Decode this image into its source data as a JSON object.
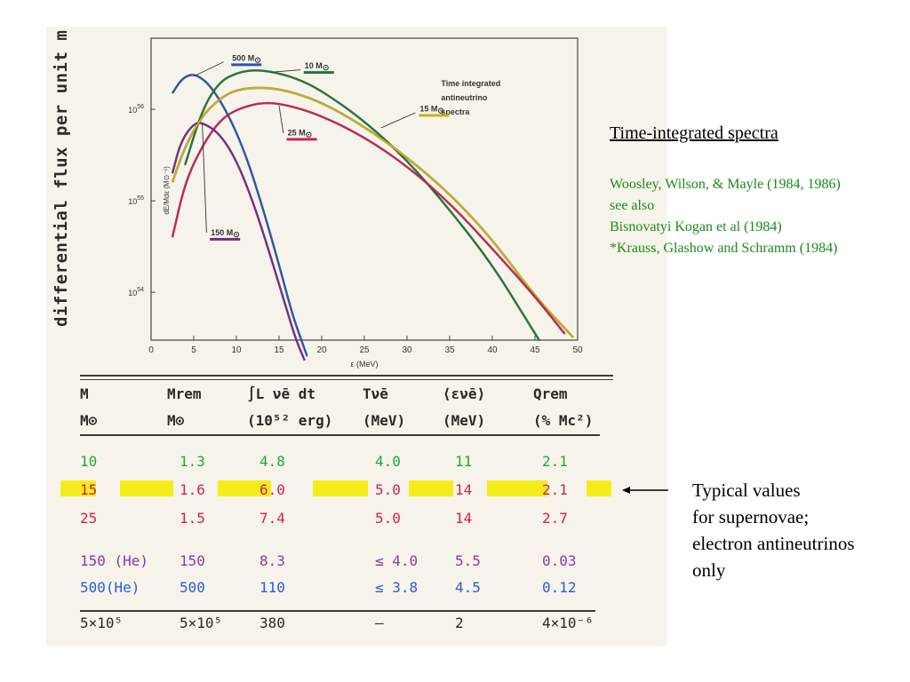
{
  "scan_label": "differential flux per unit m",
  "right": {
    "title": "Time-integrated spectra",
    "references": [
      "Woosley, Wilson, & Mayle (1984, 1986)",
      "see also",
      "Bisnovatyi Kogan et al (1984)",
      "*Krauss, Glashow and Schramm (1984)"
    ],
    "typical_note": [
      "Typical values",
      "for supernovae;",
      "electron antineutrinos",
      "only"
    ]
  },
  "colors": {
    "reference_text": "#1a8a1a",
    "highlight": "#f5ec1c",
    "m10": "#1f7a3a",
    "m15": "#c9b21a",
    "m25": "#cc2255",
    "m150": "#7a2a8a",
    "m500": "#2a55b5"
  },
  "chart_data": {
    "type": "line",
    "title": "Time integrated antineutrino spectra",
    "xlabel": "ε (MeV)",
    "ylabel": "dE/Mdε (M⊙⁻¹)",
    "y_scale": "log",
    "xlim": [
      0,
      50
    ],
    "ylim": [
      3e+53,
      6e+56
    ],
    "x_ticks": [
      0,
      5,
      10,
      15,
      20,
      25,
      30,
      35,
      40,
      45,
      50
    ],
    "y_ticks": [
      {
        "value": 1e+54,
        "label": "10",
        "exp": "54"
      },
      {
        "value": 1e+55,
        "label": "10",
        "exp": "55"
      },
      {
        "value": 1e+56,
        "label": "10",
        "exp": "56"
      }
    ],
    "series": [
      {
        "name": "500 M⊙",
        "color": "#2a55b5",
        "x": [
          2.5,
          3.5,
          4.5,
          5.5,
          7,
          9,
          11,
          13,
          15,
          16.5,
          17.5,
          18.3
        ],
        "y": [
          1.5e+56,
          2.1e+56,
          2.4e+56,
          2.35e+56,
          1.8e+56,
          9e+55,
          3.4e+55,
          9e+54,
          2e+54,
          6e+53,
          3.2e+53,
          2e+53
        ]
      },
      {
        "name": "150 M⊙",
        "color": "#7a2a8a",
        "x": [
          2.5,
          3.5,
          5,
          6,
          8,
          10,
          12,
          14,
          16,
          17,
          18
        ],
        "y": [
          2e+55,
          4.5e+55,
          7e+55,
          7.2e+55,
          5.5e+55,
          2.8e+55,
          9.5e+54,
          2.5e+54,
          6e+53,
          3e+53,
          1.8e+53
        ]
      },
      {
        "name": "10 M⊙",
        "color": "#1f7a3a",
        "x": [
          4,
          6,
          8,
          10,
          12,
          14,
          17,
          20,
          25,
          30,
          35,
          40,
          44,
          45.5
        ],
        "y": [
          2.5e+55,
          1e+56,
          2e+56,
          2.5e+56,
          2.7e+56,
          2.6e+56,
          2.2e+56,
          1.6e+56,
          7.5e+55,
          2.8e+55,
          8e+54,
          2e+54,
          5e+53,
          3e+53
        ]
      },
      {
        "name": "15 M⊙",
        "color": "#c9b21a",
        "x": [
          2.5,
          4,
          6,
          8,
          10,
          13,
          16,
          20,
          25,
          30,
          35,
          40,
          45,
          49.5
        ],
        "y": [
          1.6e+55,
          4e+55,
          8.5e+55,
          1.3e+56,
          1.65e+56,
          1.75e+56,
          1.6e+56,
          1.2e+56,
          6.5e+55,
          3e+55,
          1.2e+55,
          3.8e+54,
          9e+53,
          3.2e+53
        ]
      },
      {
        "name": "25 M⊙",
        "color": "#cc2255",
        "x": [
          2.5,
          4,
          6,
          8,
          10,
          13,
          16,
          20,
          25,
          30,
          35,
          40,
          45,
          48.5
        ],
        "y": [
          4e+54,
          1.6e+55,
          4e+55,
          7.5e+55,
          1e+56,
          1.2e+56,
          1.12e+56,
          8.5e+55,
          5e+55,
          2.4e+55,
          9.5e+54,
          3e+54,
          9e+53,
          3.5e+53
        ]
      }
    ],
    "labels": [
      {
        "text": "500 M",
        "sub": "⊙",
        "color": "#2a55b5",
        "x": 9.5,
        "y": 3.4e+56,
        "lx1": 8.5,
        "ly1": 3.3e+56,
        "lx2": 5,
        "ly2": 2.3e+56
      },
      {
        "text": "10 M",
        "sub": "⊙",
        "color": "#1f7a3a",
        "x": 18,
        "y": 2.8e+56,
        "lx1": 17.5,
        "ly1": 2.7e+56,
        "lx2": 14,
        "ly2": 2.55e+56
      },
      {
        "text": "Time integrated",
        "sub": "",
        "color": "#333333",
        "x": 34,
        "y": 1.8e+56
      },
      {
        "text": "antineutrino",
        "sub": "",
        "color": "#333333",
        "x": 34,
        "y": 1.25e+56
      },
      {
        "text": "spectra",
        "sub": "",
        "color": "#333333",
        "x": 34,
        "y": 8.8e+55
      },
      {
        "text": "15 M",
        "sub": "⊙",
        "color": "#c9b21a",
        "x": 31.5,
        "y": 9.5e+55,
        "lx1": 31,
        "ly1": 9.2e+55,
        "lx2": 27,
        "ly2": 6.3e+55
      },
      {
        "text": "25 M",
        "sub": "⊙",
        "color": "#cc2255",
        "x": 16,
        "y": 5.2e+55,
        "lx1": 15.5,
        "ly1": 5.5e+55,
        "lx2": 15,
        "ly2": 1.1e+56
      },
      {
        "text": "150 M",
        "sub": "⊙",
        "color": "#7a2a8a",
        "x": 7,
        "y": 4.2e+54,
        "lx1": 6.5,
        "ly1": 4.5e+54,
        "lx2": 6,
        "ly2": 7e+55
      }
    ]
  },
  "table": {
    "headers_top": [
      "M",
      "Mrem",
      "∫L ν̄e dt",
      "Tν̄e",
      "⟨εν̄e⟩",
      "Qrem"
    ],
    "headers_bottom": [
      "M⊙",
      "M⊙",
      "(10⁵² erg)",
      "(MeV)",
      "(MeV)",
      "(% Mc²)"
    ],
    "rows": [
      {
        "cells": [
          "10",
          "1.3",
          "4.8",
          "4.0",
          "11",
          "2.1"
        ],
        "color": "#1fa83a",
        "highlight": false
      },
      {
        "cells": [
          "15",
          "1.6",
          "6.0",
          "5.0",
          "14",
          "2.1"
        ],
        "color": "#cc2255",
        "highlight": true
      },
      {
        "cells": [
          "25",
          "1.5",
          "7.4",
          "5.0",
          "14",
          "2.7"
        ],
        "color": "#d82040",
        "highlight": false
      },
      {
        "cells": [
          "150 (He)",
          "150",
          "8.3",
          "≤ 4.0",
          "5.5",
          "0.03"
        ],
        "color": "#8a3aa8",
        "highlight": false
      },
      {
        "cells": [
          "500(He)",
          "500",
          "110",
          "≤ 3.8",
          "4.5",
          "0.12"
        ],
        "color": "#2a5ad8",
        "highlight": false
      },
      {
        "cells": [
          "5×10⁵",
          "5×10⁵",
          "380",
          "—",
          "2",
          "4×10⁻⁶"
        ],
        "color": "#2a2a2a",
        "highlight": false
      }
    ]
  }
}
